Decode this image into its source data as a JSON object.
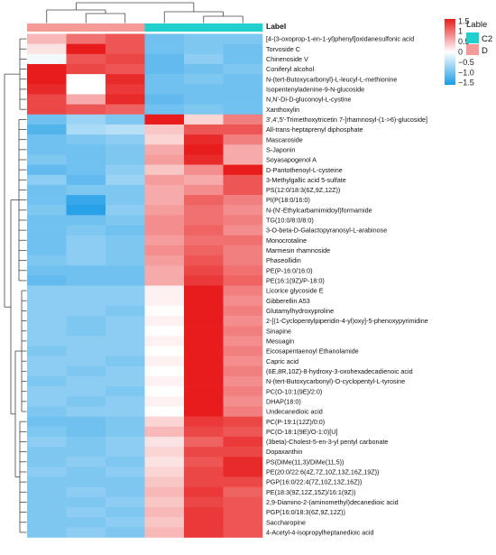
{
  "chart_data": {
    "type": "heatmap",
    "annotation_label": "Label",
    "legend_title": "Lable",
    "groups": [
      {
        "name": "C2",
        "color": "#1fd0cd"
      },
      {
        "name": "D",
        "color": "#f59a97"
      }
    ],
    "column_groups": [
      "D",
      "D",
      "D",
      "C2",
      "C2",
      "C2"
    ],
    "colorbar": {
      "ticks": [
        "1.5",
        "1",
        "0.5",
        "0",
        "−0.5",
        "−1.0",
        "−1.5"
      ],
      "tick_values": [
        1.5,
        1.0,
        0.5,
        0,
        -0.5,
        -1.0,
        -1.5
      ],
      "range": [
        -1.6,
        1.6
      ],
      "colors": {
        "low": "#1a9be6",
        "mid": "#ffffff",
        "high": "#e81c1c"
      }
    },
    "rows": [
      "[4-(3-oxoprop-1-en-1-yl)phenyl]oxidanesulfonic acid",
      "Torvoside C",
      "Chinenoside V",
      "Coniferyl alcohol",
      "N-(tert-Butoxycarbonyl)-L-leucyl-L-methionine",
      "Isopentenyladenine-9-N-glucoside",
      "N,N'-Di-D-gluconoyl-L-cystine",
      "Xanthoxylin",
      "3',4',5'-Trimethoxytricetin 7-[rhamnosyl-(1->6)-glucoside]",
      "All-trans-heptaprenyl diphosphate",
      "Mascaroside",
      "S-Japonin",
      "Soyasapogenol A",
      "D-Pantothenoyl-L-cysteine",
      "3-Methylgallic acid 5-sulfate",
      "PS(12:0/18:3(6Z,9Z,12Z))",
      "PI(P(18:0/16:0)",
      "N-(N'-Ethylcarbamimidoyl)formamide",
      "TG(10:0/8:0/8:0)",
      "3-O-beta-D-Galactopyranosyl-L-arabinose",
      "Monocrotaline",
      "Marmesin rhamnoside",
      "Phaseollidin",
      "PE(P-16:0/16:0)",
      "PE(16:1(9Z)/P-18:0)",
      "Licorice glycoside E",
      "Gibberellin A53",
      "Glutamylhydroxyproline",
      "2-[(1-Cyclopentylpiperidin-4-yl)oxy]-5-phenoxypyrimidine",
      "Sinapine",
      "Mesuagin",
      "Eicosapentaenoyl Ethanolamide",
      "Capric acid",
      "(6E,8R,10Z)-8-hydroxy-3-oxohexadecadienoic acid",
      "N-(tert-Butoxycarbonyl)-O-cyclopentyl-L-tyrosine",
      "PC(O-10:1(9E)/2:0)",
      "DHAP(18:0)",
      "Undecanedioic acid",
      "PC(P-19:1(12Z)/0:0)",
      "PC(O-18:1(9E)/O-1:0)[U]",
      "(3beta)-Cholest-5-en-3-yl pentyl carbonate",
      "Dopaxanthin",
      "PS(DiMe(11,3)/DiMe(11,5))",
      "PE(20:0/22:6(4Z,7Z,10Z,13Z,16Z,19Z))",
      "PGP(16:0/22:4(7Z,10Z,13Z,16Z))",
      "PE(18:3(9Z,12Z,15Z)/16:1(9Z))",
      "2,9-Diamino-2-(aminomethyl)decanedioic acid",
      "PGP(16:0/18:3(6Z,9Z,12Z))",
      "Saccharopine",
      "4-Acetyl-4-isopropylheptanedioic acid"
    ],
    "values": [
      [
        0.5,
        1.0,
        1.2,
        -1.0,
        -0.9,
        -0.9
      ],
      [
        0.2,
        1.6,
        1.2,
        -1.0,
        -0.9,
        -1.0
      ],
      [
        -0.1,
        1.2,
        1.3,
        -1.1,
        -0.8,
        -1.0
      ],
      [
        1.6,
        1.3,
        1.2,
        -1.1,
        -1.0,
        -0.9
      ],
      [
        1.6,
        0.0,
        1.5,
        -1.0,
        -0.9,
        -1.0
      ],
      [
        1.5,
        0.0,
        1.4,
        -1.0,
        -1.0,
        -1.0
      ],
      [
        1.3,
        0.6,
        1.5,
        -1.1,
        -1.0,
        -1.0
      ],
      [
        1.3,
        1.2,
        1.1,
        -1.0,
        -0.9,
        -1.0
      ],
      [
        -1.0,
        -0.7,
        -0.9,
        1.6,
        0.3,
        0.9
      ],
      [
        -1.2,
        -0.6,
        -0.5,
        0.4,
        1.2,
        1.2
      ],
      [
        -1.0,
        -0.9,
        -0.8,
        0.3,
        1.5,
        0.9
      ],
      [
        -1.0,
        -1.0,
        -0.9,
        0.6,
        1.6,
        0.6
      ],
      [
        -0.9,
        -1.0,
        -0.9,
        0.7,
        1.5,
        0.6
      ],
      [
        -1.1,
        -1.0,
        -0.8,
        0.4,
        0.8,
        1.7
      ],
      [
        -0.8,
        -1.1,
        -0.7,
        0.7,
        0.6,
        1.2
      ],
      [
        -1.0,
        -0.9,
        -0.9,
        0.6,
        0.8,
        1.2
      ],
      [
        -1.0,
        -1.4,
        -0.9,
        0.6,
        1.1,
        0.9
      ],
      [
        -0.9,
        -1.5,
        -0.8,
        0.7,
        1.0,
        0.8
      ],
      [
        -1.0,
        -1.0,
        -0.9,
        0.8,
        1.0,
        0.9
      ],
      [
        -1.0,
        -0.9,
        -1.0,
        0.8,
        1.1,
        0.8
      ],
      [
        -1.0,
        -0.8,
        -0.9,
        0.7,
        1.0,
        1.0
      ],
      [
        -1.0,
        -0.8,
        -0.9,
        0.8,
        1.1,
        0.9
      ],
      [
        -0.9,
        -0.8,
        -0.9,
        0.7,
        1.2,
        0.9
      ],
      [
        -1.0,
        -1.0,
        -1.0,
        0.6,
        1.3,
        1.0
      ],
      [
        -1.1,
        -1.0,
        -1.0,
        0.6,
        1.4,
        1.1
      ],
      [
        -0.8,
        -0.8,
        -0.8,
        0.1,
        1.6,
        0.9
      ],
      [
        -0.8,
        -0.8,
        -0.8,
        0.1,
        1.6,
        0.8
      ],
      [
        -0.8,
        -0.8,
        -0.9,
        0.0,
        1.6,
        0.9
      ],
      [
        -0.8,
        -0.9,
        -0.8,
        0.1,
        1.6,
        0.8
      ],
      [
        -0.8,
        -0.9,
        -0.8,
        0.0,
        1.6,
        0.9
      ],
      [
        -0.8,
        -0.8,
        -0.8,
        0.1,
        1.6,
        0.8
      ],
      [
        -0.9,
        -0.8,
        -0.8,
        0.0,
        1.6,
        0.9
      ],
      [
        -0.8,
        -0.8,
        -0.9,
        0.1,
        1.6,
        0.8
      ],
      [
        -0.8,
        -0.9,
        -0.8,
        0.0,
        1.6,
        0.9
      ],
      [
        -0.9,
        -0.8,
        -0.8,
        0.1,
        1.6,
        0.8
      ],
      [
        -0.8,
        -0.8,
        -0.9,
        0.0,
        1.6,
        0.9
      ],
      [
        -0.8,
        -0.9,
        -0.8,
        0.1,
        1.6,
        0.8
      ],
      [
        -0.9,
        -0.8,
        -0.8,
        0.0,
        1.6,
        0.9
      ],
      [
        -1.0,
        -1.0,
        -0.9,
        0.3,
        1.4,
        1.3
      ],
      [
        -0.9,
        -1.0,
        -0.9,
        0.5,
        1.3,
        1.2
      ],
      [
        -0.8,
        -0.9,
        -0.8,
        0.2,
        1.1,
        1.4
      ],
      [
        -0.9,
        -0.9,
        -0.8,
        0.3,
        1.3,
        1.3
      ],
      [
        -0.9,
        -0.8,
        -0.9,
        0.2,
        1.2,
        1.5
      ],
      [
        -0.8,
        -0.9,
        -0.8,
        0.3,
        1.3,
        1.5
      ],
      [
        -0.9,
        -0.9,
        -0.9,
        0.4,
        1.3,
        1.3
      ],
      [
        -0.9,
        -0.8,
        -0.9,
        0.5,
        1.4,
        1.1
      ],
      [
        -0.9,
        -0.9,
        -0.8,
        0.4,
        1.3,
        1.2
      ],
      [
        -0.9,
        -0.8,
        -0.9,
        0.5,
        1.4,
        1.2
      ],
      [
        -0.9,
        -0.9,
        -0.8,
        0.4,
        1.4,
        1.2
      ],
      [
        -0.9,
        -0.8,
        -0.9,
        0.5,
        1.4,
        1.2
      ]
    ]
  }
}
